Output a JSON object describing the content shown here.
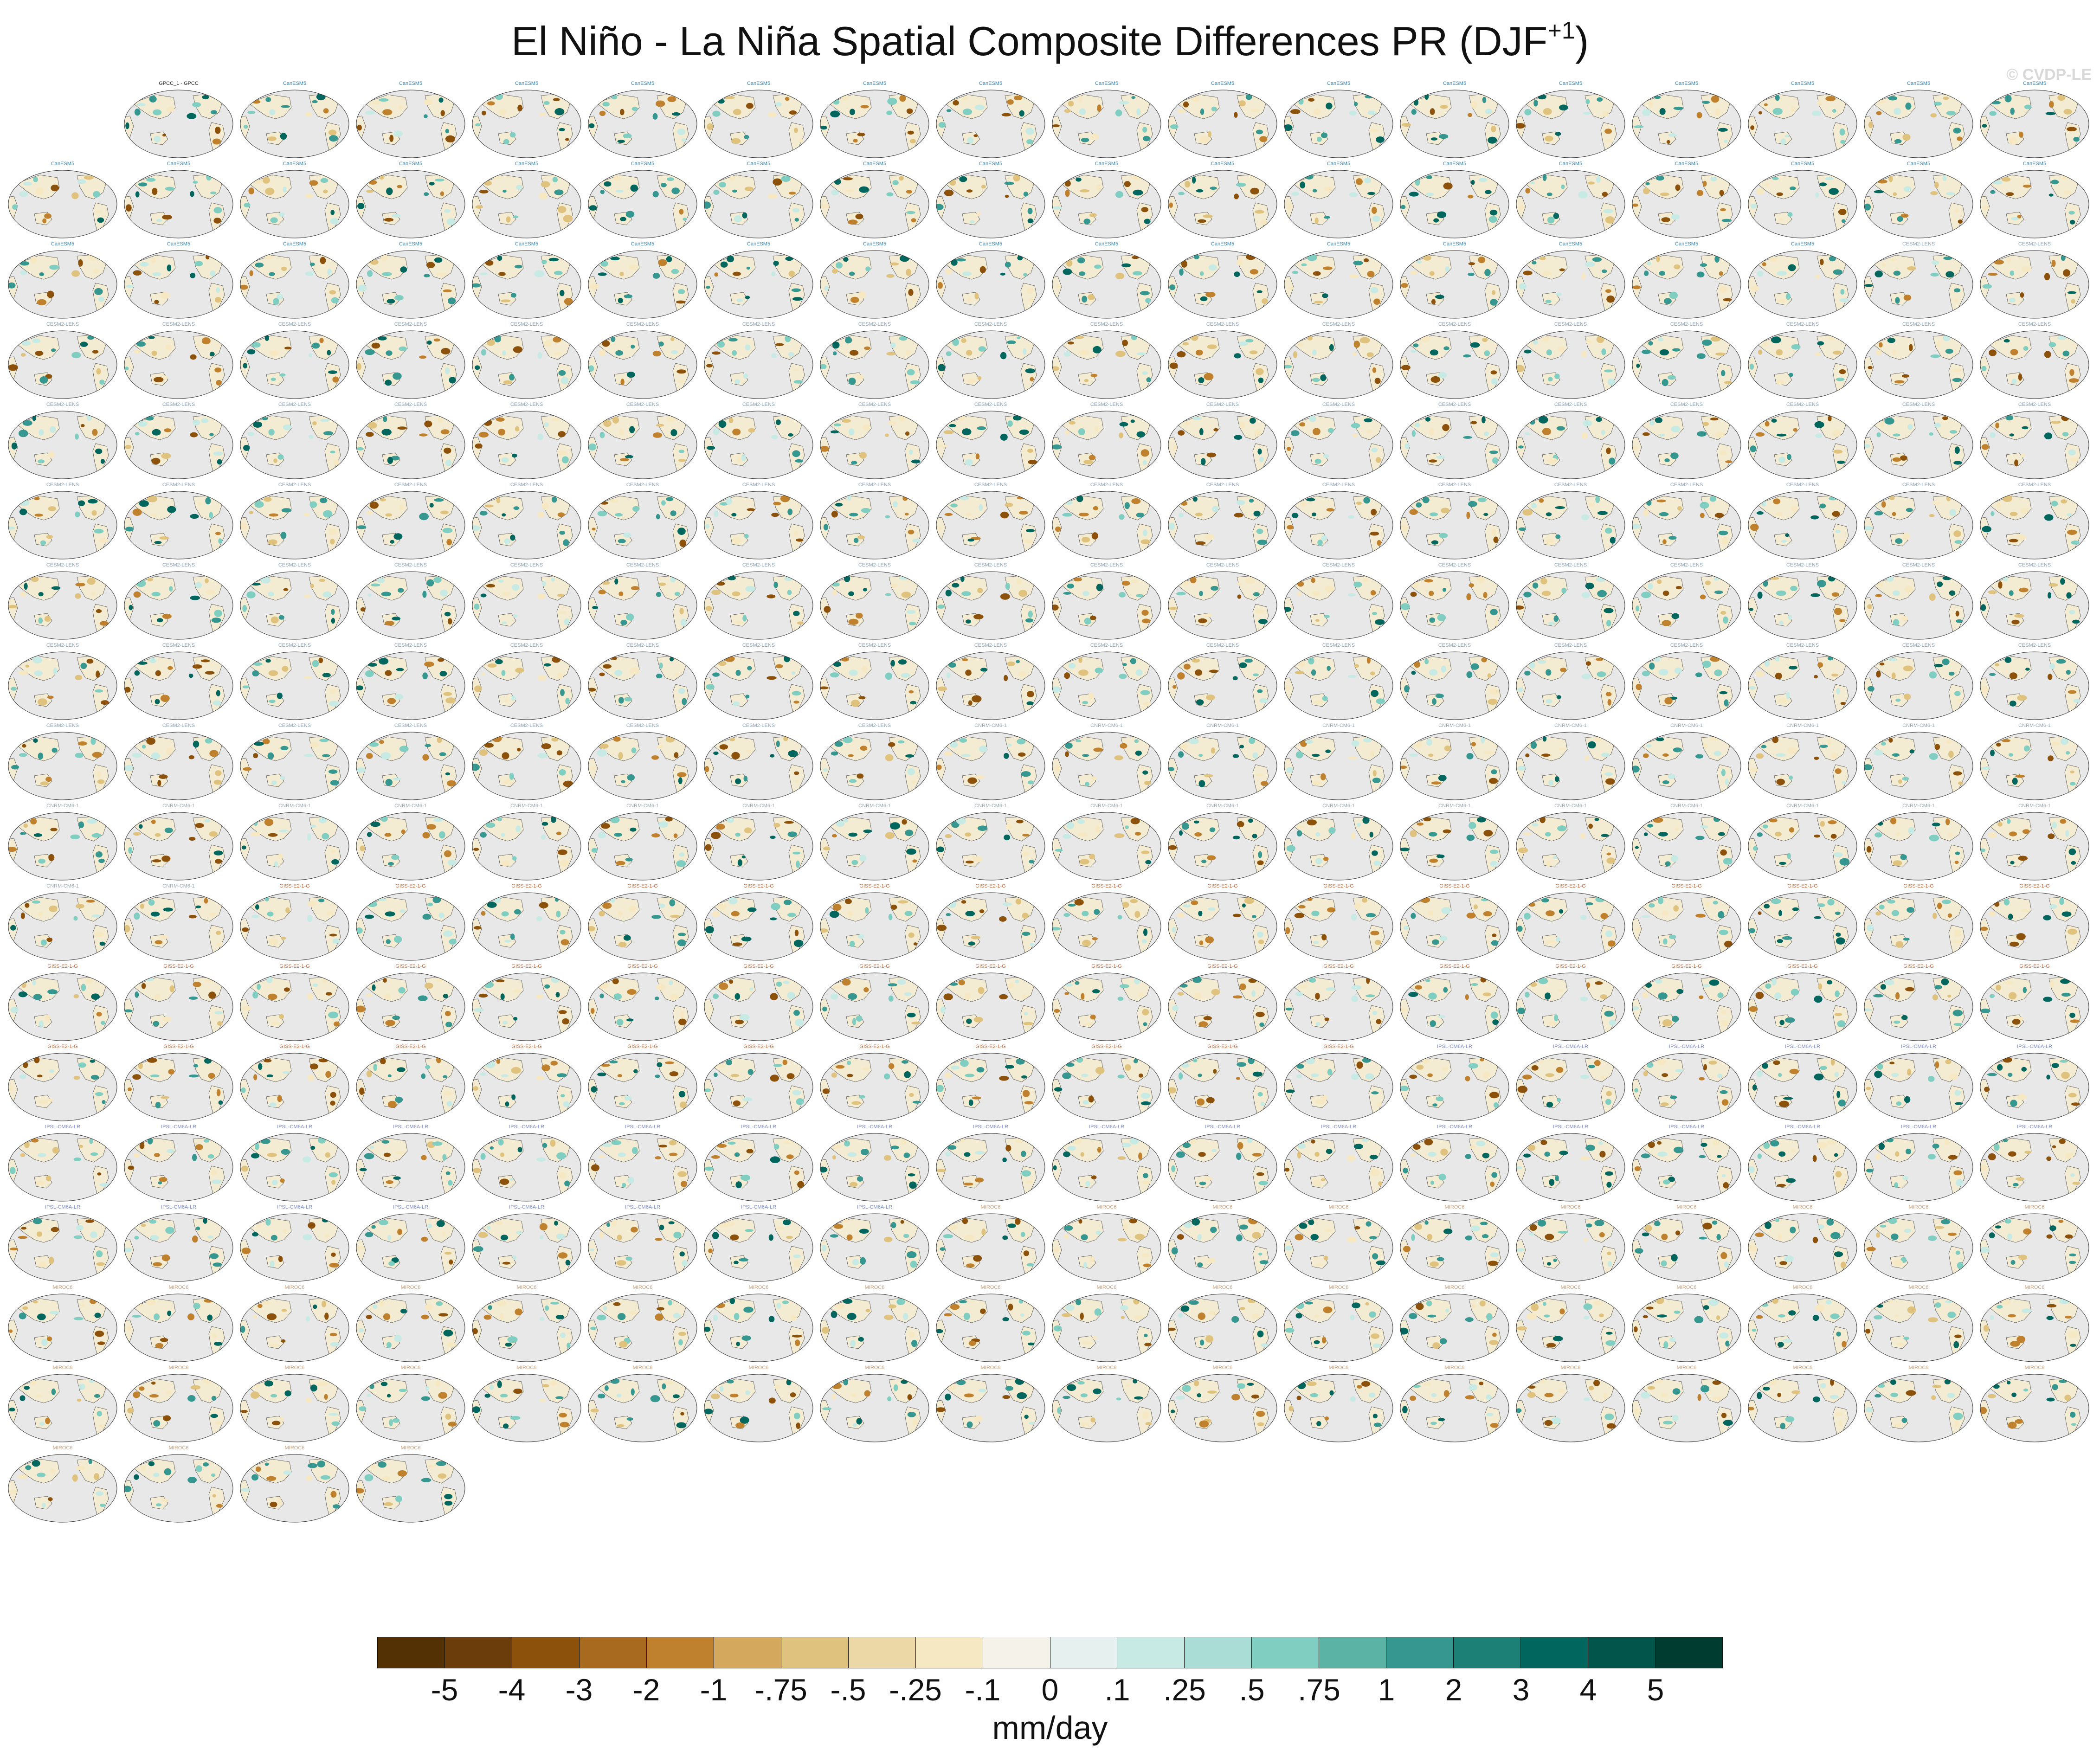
{
  "title": {
    "main": "El Niño - La Niña Spatial Composite Differences PR (DJF",
    "superscript": "+1",
    "close": ")"
  },
  "watermark": "© CVDP-LE",
  "panels": {
    "first_label": "GPCC_1 - GPCC",
    "model_groups": [
      {
        "name": "CanESM5",
        "color": "#3a84b8",
        "count": 50
      },
      {
        "name": "CESM2-LENS",
        "color": "#8aa0b8",
        "count": 100
      },
      {
        "name": "CNRM-CM6-1",
        "color": "#9aa6b2",
        "count": 30
      },
      {
        "name": "GISS-E2-1-G",
        "color": "#c06a40",
        "count": 46
      },
      {
        "name": "IPSL-CM6A-LR",
        "color": "#7a86c8",
        "count": 32
      },
      {
        "name": "MIROC6",
        "color": "#d2a078",
        "count": 50
      }
    ]
  },
  "colorbar": {
    "colors": [
      "#543005",
      "#6a3d0a",
      "#8c510a",
      "#a86a1e",
      "#bf812d",
      "#d4a95e",
      "#dfc27d",
      "#ecd7a6",
      "#f6e8c3",
      "#f5f2ea",
      "#e6f1ef",
      "#c7eae5",
      "#a9ddd5",
      "#80cdc1",
      "#5bb3a6",
      "#35978f",
      "#1d8077",
      "#01665e",
      "#01554b",
      "#003c30"
    ],
    "tick_labels": [
      "-5",
      "-4",
      "-3",
      "-2",
      "-1",
      "-.75",
      "-.5",
      "-.25",
      "-.1",
      "0",
      ".1",
      ".25",
      ".5",
      ".75",
      "1",
      "2",
      "3",
      "4",
      "5"
    ],
    "units": "mm/day"
  }
}
